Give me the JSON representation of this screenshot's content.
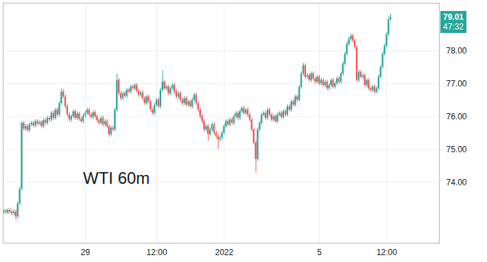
{
  "chart_data": {
    "type": "candlestick",
    "title": "WTI 60m",
    "last_price": 79.01,
    "countdown": "47:32",
    "colors": {
      "up": "#26a69a",
      "down": "#ef5350"
    },
    "grid": true,
    "ylim": [
      72.15,
      79.45
    ],
    "yticks": [
      {
        "value": 74,
        "label": "74.00"
      },
      {
        "value": 75,
        "label": "75.00"
      },
      {
        "value": 76,
        "label": "76.00"
      },
      {
        "value": 77,
        "label": "77.00"
      },
      {
        "value": 78,
        "label": "78.00"
      }
    ],
    "categories": [
      null,
      null,
      null,
      null,
      null,
      null,
      null,
      null,
      null,
      null,
      null,
      null,
      null,
      null,
      null,
      null,
      null,
      null,
      null,
      null,
      null,
      null,
      null,
      null,
      null,
      null,
      null,
      null,
      null,
      null,
      null,
      null,
      null,
      null,
      null,
      null,
      null,
      null,
      null,
      null,
      null,
      "29",
      null,
      null,
      null,
      null,
      null,
      null,
      null,
      null,
      null,
      null,
      null,
      null,
      null,
      null,
      null,
      null,
      null,
      null,
      null,
      null,
      null,
      null,
      null,
      null,
      null,
      null,
      null,
      null,
      null,
      null,
      null,
      null,
      null,
      null,
      null,
      "12:00",
      null,
      null,
      null,
      null,
      null,
      null,
      null,
      null,
      null,
      null,
      null,
      null,
      null,
      null,
      null,
      null,
      null,
      null,
      null,
      null,
      null,
      null,
      null,
      null,
      null,
      null,
      null,
      null,
      null,
      null,
      null,
      null,
      null,
      "2022",
      null,
      null,
      null,
      null,
      null,
      null,
      null,
      null,
      null,
      null,
      null,
      null,
      null,
      null,
      null,
      null,
      null,
      null,
      null,
      null,
      null,
      null,
      null,
      null,
      null,
      null,
      null,
      null,
      null,
      null,
      null,
      null,
      null,
      null,
      null,
      null,
      null,
      null,
      null,
      null,
      null,
      null,
      null,
      null,
      null,
      null,
      null,
      "5",
      null,
      null,
      null,
      null,
      null,
      null,
      null,
      null,
      null,
      null,
      null,
      null,
      null,
      null,
      null,
      null,
      null,
      null,
      null,
      null,
      null,
      null,
      null,
      null,
      null,
      null,
      null,
      null,
      null,
      null,
      null,
      null,
      null,
      "12:00",
      null,
      null,
      null,
      null,
      null,
      null,
      null,
      null,
      null,
      null,
      null,
      null,
      null,
      null,
      null,
      null,
      null,
      null,
      null,
      null,
      null,
      null,
      null,
      null,
      null,
      null
    ],
    "open": [
      73.1,
      73.12,
      73.08,
      73.15,
      73.1,
      73.05,
      73.1,
      72.95,
      73.35,
      73.8,
      75.8,
      75.62,
      75.7,
      75.58,
      75.75,
      75.8,
      75.72,
      75.85,
      75.78,
      75.82,
      75.7,
      75.88,
      75.8,
      75.95,
      75.9,
      76.1,
      75.95,
      76.2,
      76.05,
      76.4,
      76.75,
      76.6,
      76.3,
      76.05,
      75.9,
      76.0,
      76.15,
      75.95,
      76.08,
      75.92,
      75.85,
      76.02,
      76.1,
      76.2,
      76.05,
      75.98,
      76.12,
      76.0,
      75.88,
      75.8,
      75.95,
      75.75,
      75.85,
      75.7,
      75.45,
      75.65,
      75.6,
      76.2,
      77.1,
      76.7,
      76.55,
      76.7,
      76.62,
      76.8,
      76.75,
      76.9,
      76.85,
      76.95,
      76.78,
      76.65,
      76.72,
      76.55,
      76.4,
      76.6,
      76.45,
      76.2,
      76.1,
      76.35,
      76.5,
      76.3,
      76.8,
      77.05,
      76.85,
      76.9,
      76.7,
      76.85,
      76.95,
      76.75,
      76.6,
      76.7,
      76.5,
      76.4,
      76.55,
      76.35,
      76.45,
      76.3,
      76.5,
      76.65,
      76.4,
      76.2,
      76.0,
      75.85,
      75.6,
      75.7,
      75.45,
      75.6,
      75.75,
      75.5,
      75.4,
      75.3,
      75.35,
      75.5,
      75.7,
      75.85,
      75.75,
      75.9,
      75.8,
      76.0,
      76.1,
      75.95,
      76.15,
      76.25,
      76.1,
      76.2,
      76.05,
      75.9,
      75.6,
      75.2,
      74.7,
      75.6,
      75.8,
      76.05,
      76.1,
      75.95,
      76.2,
      76.05,
      75.9,
      76.0,
      75.85,
      76.05,
      76.1,
      75.98,
      76.15,
      76.05,
      76.3,
      76.2,
      76.45,
      76.35,
      76.6,
      76.5,
      76.9,
      77.3,
      77.55,
      77.2,
      77.25,
      77.1,
      77.3,
      77.15,
      77.05,
      77.2,
      77.0,
      77.1,
      76.95,
      77.05,
      76.85,
      76.95,
      77.1,
      76.9,
      77.0,
      77.15,
      77.05,
      77.3,
      77.6,
      77.9,
      78.2,
      78.35,
      78.45,
      78.3,
      78.1,
      77.1,
      77.35,
      77.2,
      77.25,
      76.95,
      77.1,
      76.85,
      76.8,
      76.9,
      76.75,
      76.85,
      77.2,
      77.5,
      77.9,
      78.15,
      78.5,
      78.95,
      null,
      null,
      null,
      null,
      null,
      null,
      null,
      null,
      null,
      null,
      null,
      null,
      null,
      null,
      null,
      null,
      null,
      null,
      null,
      null,
      null,
      null,
      null,
      null
    ],
    "high": [
      73.18,
      73.18,
      73.21,
      73.21,
      73.16,
      73.16,
      73.16,
      73.41,
      73.86,
      75.85,
      75.86,
      75.76,
      75.76,
      75.81,
      75.86,
      75.86,
      75.91,
      75.91,
      75.88,
      75.88,
      75.94,
      75.94,
      76.01,
      76.01,
      76.16,
      76.16,
      76.26,
      76.26,
      76.46,
      76.85,
      76.81,
      76.66,
      76.36,
      76.11,
      76.06,
      76.21,
      76.21,
      76.14,
      76.14,
      75.98,
      76.08,
      76.16,
      76.26,
      76.26,
      76.11,
      76.18,
      76.18,
      76.06,
      75.94,
      76.01,
      76.01,
      75.91,
      75.91,
      75.76,
      75.71,
      75.71,
      76.26,
      77.3,
      77.16,
      76.76,
      76.76,
      76.76,
      76.86,
      76.86,
      76.96,
      76.96,
      77.01,
      77.01,
      76.84,
      76.78,
      76.78,
      76.61,
      76.66,
      76.66,
      76.51,
      76.26,
      76.41,
      76.56,
      76.56,
      76.86,
      77.4,
      77.11,
      76.96,
      76.96,
      76.91,
      77.01,
      77.01,
      76.81,
      76.76,
      76.76,
      76.56,
      76.61,
      76.61,
      76.51,
      76.51,
      76.56,
      76.71,
      76.71,
      76.46,
      76.26,
      76.06,
      75.91,
      75.76,
      75.76,
      75.66,
      75.81,
      75.81,
      75.56,
      75.46,
      75.41,
      75.56,
      75.76,
      75.91,
      75.91,
      75.96,
      75.96,
      76.06,
      76.16,
      76.16,
      76.21,
      76.31,
      76.31,
      76.26,
      76.26,
      76.11,
      75.96,
      75.66,
      75.26,
      75.66,
      75.86,
      76.11,
      76.16,
      76.16,
      76.26,
      76.26,
      76.11,
      76.06,
      76.06,
      76.11,
      76.16,
      76.16,
      76.21,
      76.21,
      76.36,
      76.36,
      76.51,
      76.51,
      76.66,
      76.66,
      76.96,
      77.36,
      77.62,
      77.61,
      77.31,
      77.31,
      77.36,
      77.36,
      77.21,
      77.26,
      77.26,
      77.16,
      77.16,
      77.11,
      77.11,
      77.01,
      77.16,
      77.16,
      77.06,
      77.21,
      77.21,
      77.36,
      77.66,
      77.96,
      78.26,
      78.41,
      78.52,
      78.51,
      78.36,
      78.16,
      77.41,
      77.41,
      77.31,
      77.31,
      77.16,
      77.16,
      76.91,
      76.96,
      76.96,
      76.91,
      77.26,
      77.56,
      77.96,
      78.21,
      78.56,
      79.05,
      79.12,
      null,
      null,
      null,
      null,
      null,
      null,
      null,
      null,
      null,
      null,
      null,
      null,
      null,
      null,
      null,
      null,
      null,
      null,
      null,
      null,
      null,
      null,
      null,
      null
    ],
    "low": [
      73.04,
      73.02,
      73.02,
      73.04,
      72.99,
      72.99,
      72.85,
      72.89,
      73.29,
      73.74,
      75.56,
      75.56,
      75.52,
      75.52,
      75.69,
      75.66,
      75.66,
      75.72,
      75.72,
      75.64,
      75.64,
      75.74,
      75.74,
      75.84,
      75.84,
      75.89,
      75.89,
      75.99,
      75.99,
      76.34,
      76.54,
      76.24,
      75.99,
      75.84,
      75.84,
      75.94,
      75.89,
      75.89,
      75.86,
      75.79,
      75.79,
      75.96,
      76.04,
      75.99,
      75.92,
      75.92,
      75.94,
      75.82,
      75.74,
      75.74,
      75.69,
      75.69,
      75.64,
      75.38,
      75.39,
      75.54,
      75.54,
      76.14,
      76.64,
      76.49,
      76.49,
      76.56,
      76.56,
      76.69,
      76.69,
      76.79,
      76.79,
      76.72,
      76.59,
      76.59,
      76.49,
      76.34,
      76.34,
      76.39,
      76.14,
      76.04,
      76.04,
      76.29,
      76.24,
      76.24,
      76.74,
      76.79,
      76.79,
      76.64,
      76.64,
      76.79,
      76.69,
      76.54,
      76.54,
      76.44,
      76.34,
      76.34,
      76.29,
      76.29,
      76.24,
      76.24,
      76.44,
      76.34,
      76.14,
      75.94,
      75.79,
      75.54,
      75.54,
      75.25,
      75.39,
      75.54,
      75.44,
      75.34,
      75.0,
      75.24,
      75.29,
      75.44,
      75.64,
      75.69,
      75.69,
      75.74,
      75.74,
      75.94,
      75.89,
      75.89,
      76.09,
      76.04,
      76.04,
      75.99,
      75.84,
      75.54,
      75.14,
      74.28,
      74.64,
      75.54,
      75.74,
      75.99,
      75.89,
      75.89,
      75.99,
      75.84,
      75.84,
      75.79,
      75.79,
      75.99,
      75.92,
      75.92,
      75.99,
      75.99,
      76.14,
      76.14,
      76.29,
      76.29,
      76.44,
      76.44,
      76.84,
      77.24,
      77.14,
      77.14,
      77.04,
      77.04,
      77.09,
      76.99,
      76.99,
      76.94,
      76.94,
      76.89,
      76.89,
      76.79,
      76.79,
      76.89,
      76.84,
      76.84,
      76.94,
      76.99,
      76.99,
      77.24,
      77.54,
      77.84,
      78.14,
      78.29,
      78.24,
      78.04,
      77.04,
      77.04,
      77.14,
      77.14,
      76.89,
      76.89,
      76.79,
      76.74,
      76.74,
      76.69,
      76.69,
      76.79,
      77.14,
      77.44,
      77.84,
      78.09,
      78.44,
      78.9,
      null,
      null,
      null,
      null,
      null,
      null,
      null,
      null,
      null,
      null,
      null,
      null,
      null,
      null,
      null,
      null,
      null,
      null,
      null,
      null,
      null,
      null,
      null,
      null
    ],
    "close": [
      73.12,
      73.08,
      73.15,
      73.1,
      73.05,
      73.1,
      72.95,
      73.35,
      73.8,
      75.8,
      75.62,
      75.7,
      75.58,
      75.75,
      75.8,
      75.72,
      75.85,
      75.78,
      75.82,
      75.7,
      75.88,
      75.8,
      75.95,
      75.9,
      76.1,
      75.95,
      76.2,
      76.05,
      76.4,
      76.75,
      76.6,
      76.3,
      76.05,
      75.9,
      76.0,
      76.15,
      75.95,
      76.08,
      75.92,
      75.85,
      76.02,
      76.1,
      76.2,
      76.05,
      75.98,
      76.12,
      76.0,
      75.88,
      75.8,
      75.95,
      75.75,
      75.85,
      75.7,
      75.45,
      75.65,
      75.6,
      76.2,
      77.1,
      76.7,
      76.55,
      76.7,
      76.62,
      76.8,
      76.75,
      76.9,
      76.85,
      76.95,
      76.78,
      76.65,
      76.72,
      76.55,
      76.4,
      76.6,
      76.45,
      76.2,
      76.1,
      76.35,
      76.5,
      76.3,
      76.8,
      77.05,
      76.85,
      76.9,
      76.7,
      76.85,
      76.95,
      76.75,
      76.6,
      76.7,
      76.5,
      76.4,
      76.55,
      76.35,
      76.45,
      76.3,
      76.5,
      76.65,
      76.4,
      76.2,
      76.0,
      75.85,
      75.6,
      75.7,
      75.45,
      75.6,
      75.75,
      75.5,
      75.4,
      75.3,
      75.35,
      75.5,
      75.7,
      75.85,
      75.75,
      75.9,
      75.8,
      76.0,
      76.1,
      75.95,
      76.15,
      76.25,
      76.1,
      76.2,
      76.05,
      75.9,
      75.6,
      75.2,
      74.7,
      75.6,
      75.8,
      76.05,
      76.1,
      75.95,
      76.2,
      76.05,
      75.9,
      76.0,
      75.85,
      76.05,
      76.1,
      75.98,
      76.15,
      76.05,
      76.3,
      76.2,
      76.45,
      76.35,
      76.6,
      76.5,
      76.9,
      77.3,
      77.55,
      77.2,
      77.25,
      77.1,
      77.3,
      77.15,
      77.05,
      77.2,
      77.0,
      77.1,
      76.95,
      77.05,
      76.85,
      76.95,
      77.1,
      76.9,
      77.0,
      77.15,
      77.05,
      77.3,
      77.6,
      77.9,
      78.2,
      78.35,
      78.45,
      78.3,
      78.1,
      77.1,
      77.35,
      77.2,
      77.25,
      76.95,
      77.1,
      76.85,
      76.8,
      76.9,
      76.75,
      76.85,
      77.2,
      77.5,
      77.9,
      78.15,
      78.5,
      78.95,
      79.01,
      null,
      null,
      null,
      null,
      null,
      null,
      null,
      null,
      null,
      null,
      null,
      null,
      null,
      null,
      null,
      null,
      null,
      null,
      null,
      null,
      null,
      null,
      null,
      null
    ]
  }
}
